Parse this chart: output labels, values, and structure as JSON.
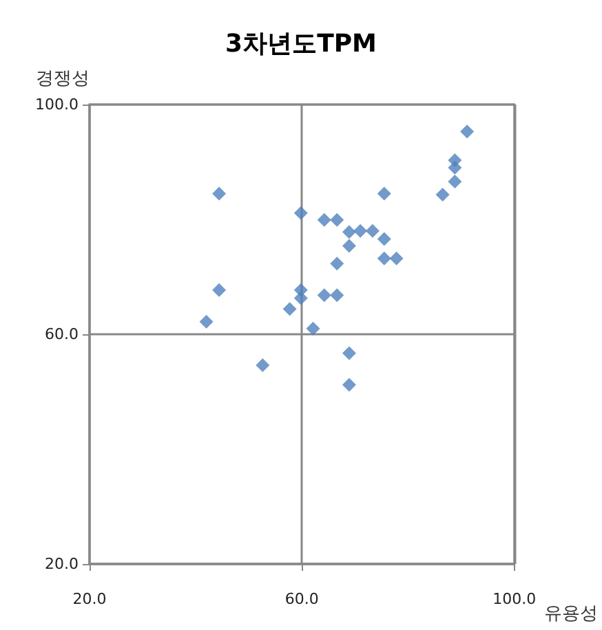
{
  "chart_data": {
    "type": "scatter",
    "title": "3차년도TPM",
    "xlabel": "유용성",
    "ylabel": "경쟁성",
    "xlim": [
      20,
      100
    ],
    "ylim": [
      20,
      100
    ],
    "xticks": [
      {
        "value": 20,
        "label": "20.0"
      },
      {
        "value": 60,
        "label": "60.0"
      },
      {
        "value": 100,
        "label": "100.0"
      }
    ],
    "yticks": [
      {
        "value": 20,
        "label": "20.0"
      },
      {
        "value": 60,
        "label": "60.0"
      },
      {
        "value": 100,
        "label": "100.0"
      }
    ],
    "grid": true,
    "marker": "diamond",
    "series": [
      {
        "color": "#4f81bd",
        "x": [
          44.4,
          59.8,
          64.2,
          66.6,
          68.9,
          68.9,
          66.6,
          44.4,
          59.8,
          59.8,
          64.2,
          66.6,
          57.7,
          42.0,
          62.1,
          52.6,
          68.9,
          68.9,
          91.1,
          88.8,
          88.8,
          88.8,
          86.5,
          75.5,
          71.0,
          73.3,
          75.5,
          75.5,
          77.8
        ],
        "values": [
          84.5,
          81.1,
          79.9,
          79.9,
          77.8,
          75.4,
          72.3,
          67.7,
          67.7,
          66.3,
          66.8,
          66.8,
          64.4,
          62.2,
          61.0,
          54.6,
          56.7,
          51.2,
          95.3,
          90.3,
          89.0,
          86.6,
          84.3,
          84.5,
          78.0,
          78.0,
          76.6,
          73.2,
          73.2
        ]
      }
    ]
  }
}
